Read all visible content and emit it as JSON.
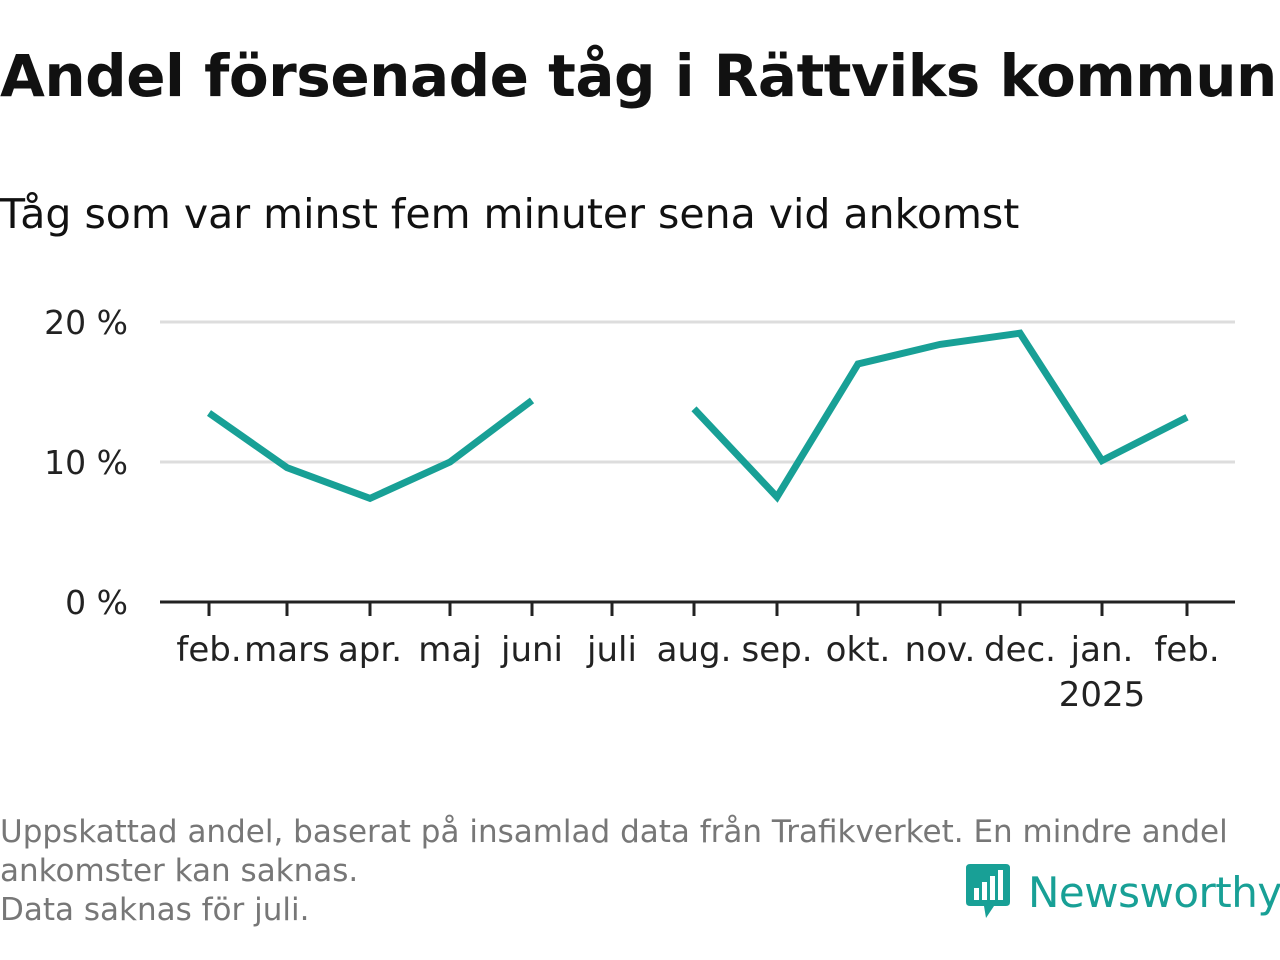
{
  "title": "Andel försenade tåg i Rättviks kommun",
  "subtitle": "Tåg som var minst fem minuter sena vid ankomst",
  "footnote": {
    "line1": "Uppskattad andel, baserat på insamlad data från Trafikverket. En mindre andel",
    "line2": "ankomster kan saknas.",
    "line3": "Data saknas för juli."
  },
  "brand": {
    "name": "Newsworthy",
    "color": "#18a096",
    "icon": "newsworthy-chart-bubble-icon"
  },
  "chart_data": {
    "type": "line",
    "categories": [
      "feb.",
      "mars",
      "apr.",
      "maj",
      "juni",
      "juli",
      "aug.",
      "sep.",
      "okt.",
      "nov.",
      "dec.",
      "jan.",
      "feb."
    ],
    "category_sublabels": [
      "",
      "",
      "",
      "",
      "",
      "",
      "",
      "",
      "",
      "",
      "",
      "2025",
      ""
    ],
    "series": [
      {
        "values": [
          13.5,
          9.6,
          7.4,
          10.0,
          14.4,
          null,
          13.8,
          7.5,
          17.0,
          18.4,
          19.2,
          10.1,
          13.2
        ],
        "color": "#18a096"
      }
    ],
    "y_ticks": [
      {
        "value": 0,
        "label": "0 %"
      },
      {
        "value": 10,
        "label": "10 %"
      },
      {
        "value": 20,
        "label": "20 %"
      }
    ],
    "ylim": [
      0,
      20
    ],
    "grid": true,
    "legend": "none"
  }
}
